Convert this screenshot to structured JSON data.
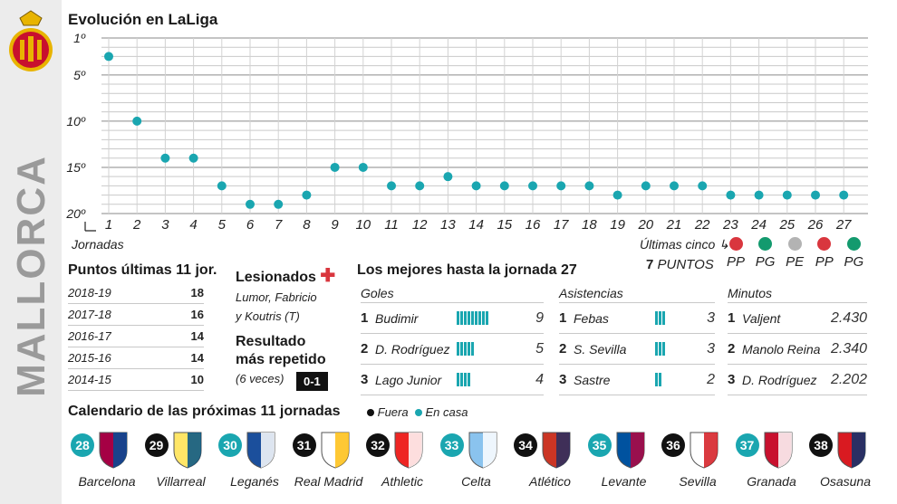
{
  "team_name": "MALLORCA",
  "chart_title": "Evolución en LaLiga",
  "chart_data": {
    "type": "scatter",
    "title": "Evolución en LaLiga",
    "xlabel": "Jornadas",
    "ylabel": "",
    "x": [
      1,
      2,
      3,
      4,
      5,
      6,
      7,
      8,
      9,
      10,
      11,
      12,
      13,
      14,
      15,
      16,
      17,
      18,
      19,
      20,
      21,
      22,
      23,
      24,
      25,
      26,
      27
    ],
    "y": [
      3,
      10,
      14,
      14,
      17,
      19,
      19,
      18,
      15,
      15,
      17,
      17,
      16,
      17,
      17,
      17,
      17,
      17,
      18,
      17,
      17,
      17,
      18,
      18,
      18,
      18,
      18
    ],
    "y_ticks": [
      "1º",
      "5º",
      "10º",
      "15º",
      "20º"
    ],
    "y_tick_values": [
      1,
      5,
      10,
      15,
      20
    ],
    "ylim": [
      1,
      20
    ],
    "y_inverted": true,
    "x_tick_labels": [
      "1",
      "2",
      "3",
      "4",
      "5",
      "6",
      "7",
      "8",
      "9",
      "10",
      "11",
      "12",
      "13",
      "14",
      "15",
      "16",
      "17",
      "18",
      "19",
      "20",
      "21",
      "22",
      "23",
      "24",
      "25",
      "26",
      "27"
    ],
    "grid": true,
    "point_color": "#1aa6b0"
  },
  "last_five": {
    "label": "Últimas cinco",
    "points_num": "7",
    "points_label": "PUNTOS",
    "results": [
      {
        "code": "PP",
        "color": "#d9363e"
      },
      {
        "code": "PG",
        "color": "#139a6e"
      },
      {
        "code": "PE",
        "color": "#b3b3b3"
      },
      {
        "code": "PP",
        "color": "#d9363e"
      },
      {
        "code": "PG",
        "color": "#139a6e"
      }
    ]
  },
  "points_table": {
    "title": "Puntos últimas 11 jor.",
    "rows": [
      {
        "season": "2018-19",
        "points": "18"
      },
      {
        "season": "2017-18",
        "points": "16"
      },
      {
        "season": "2016-17",
        "points": "14"
      },
      {
        "season": "2015-16",
        "points": "14"
      },
      {
        "season": "2014-15",
        "points": "10"
      }
    ]
  },
  "injuries": {
    "title": "Lesionados",
    "line1": "Lumor, Fabricio",
    "line2": "y Koutris (T)"
  },
  "repeated": {
    "title1": "Resultado",
    "title2": "más repetido",
    "note": "(6 veces)",
    "score": "0-1"
  },
  "best": {
    "title": "Los mejores hasta la jornada 27",
    "goles": {
      "header": "Goles",
      "items": [
        {
          "rank": "1",
          "name": "Budimir",
          "value": "9",
          "bars": 9
        },
        {
          "rank": "2",
          "name": "D. Rodríguez",
          "value": "5",
          "bars": 5
        },
        {
          "rank": "3",
          "name": "Lago Junior",
          "value": "4",
          "bars": 4
        }
      ]
    },
    "asistencias": {
      "header": "Asistencias",
      "items": [
        {
          "rank": "1",
          "name": "Febas",
          "value": "3",
          "bars": 3
        },
        {
          "rank": "2",
          "name": "S. Sevilla",
          "value": "3",
          "bars": 3
        },
        {
          "rank": "3",
          "name": "Sastre",
          "value": "2",
          "bars": 2
        }
      ]
    },
    "minutos": {
      "header": "Minutos",
      "items": [
        {
          "rank": "1",
          "name": "Valjent",
          "value": "2.430"
        },
        {
          "rank": "2",
          "name": "Manolo Reina",
          "value": "2.340"
        },
        {
          "rank": "3",
          "name": "D. Rodríguez",
          "value": "2.202"
        }
      ]
    }
  },
  "calendar": {
    "title": "Calendario de las próximas 11 jornadas",
    "legend_away": "Fuera",
    "legend_home": "En casa",
    "games": [
      {
        "num": "28",
        "team": "Barcelona",
        "venue": "home",
        "c1": "#a50044",
        "c2": "#004d98"
      },
      {
        "num": "29",
        "team": "Villarreal",
        "venue": "away",
        "c1": "#ffe667",
        "c2": "#005187"
      },
      {
        "num": "30",
        "team": "Leganés",
        "venue": "home",
        "c1": "#1b4f9c",
        "c2": "#ffffff"
      },
      {
        "num": "31",
        "team": "Real Madrid",
        "venue": "away",
        "c1": "#ffffff",
        "c2": "#febe10"
      },
      {
        "num": "32",
        "team": "Athletic",
        "venue": "away",
        "c1": "#ee2523",
        "c2": "#ffffff"
      },
      {
        "num": "33",
        "team": "Celta",
        "venue": "home",
        "c1": "#8ac3ee",
        "c2": "#ffffff"
      },
      {
        "num": "34",
        "team": "Atlético",
        "venue": "away",
        "c1": "#cb3524",
        "c2": "#272e61"
      },
      {
        "num": "35",
        "team": "Levante",
        "venue": "home",
        "c1": "#00529f",
        "c2": "#b4053f"
      },
      {
        "num": "36",
        "team": "Sevilla",
        "venue": "away",
        "c1": "#ffffff",
        "c2": "#d4171e"
      },
      {
        "num": "37",
        "team": "Granada",
        "venue": "home",
        "c1": "#c8102e",
        "c2": "#ffffff"
      },
      {
        "num": "38",
        "team": "Osasuna",
        "venue": "away",
        "c1": "#d91a21",
        "c2": "#0a346f"
      }
    ]
  }
}
